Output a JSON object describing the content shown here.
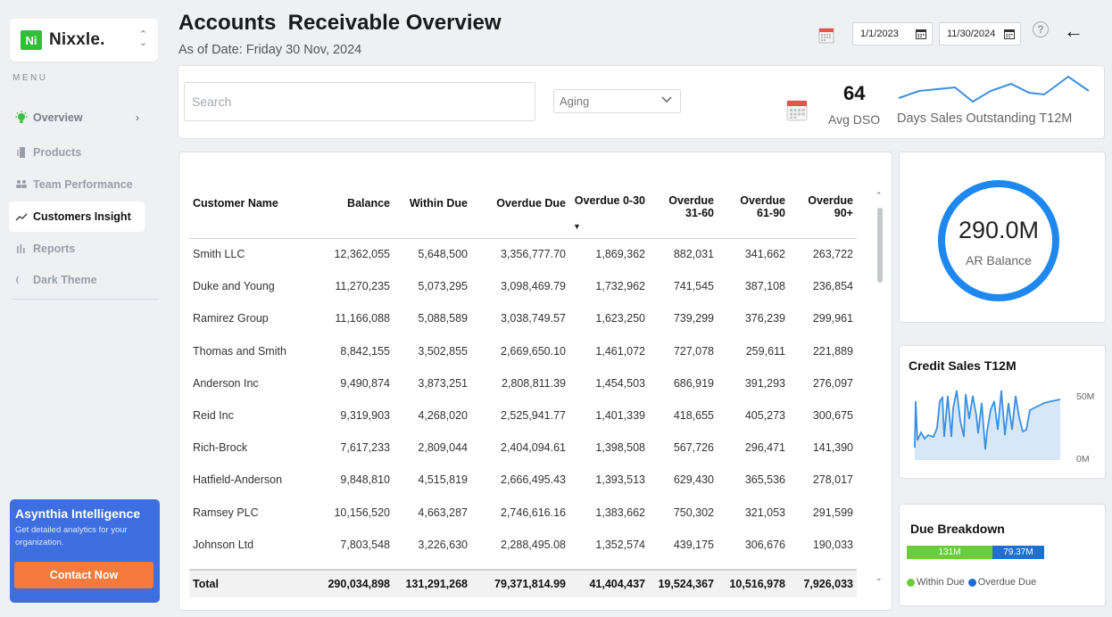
{
  "brand": {
    "logo_text": "Ni",
    "name": "Nixxle."
  },
  "sidebar": {
    "menu_label": "MENU",
    "items": [
      {
        "label": "Overview",
        "icon": "lightbulb-icon"
      },
      {
        "label": "Products",
        "icon": "products-icon"
      },
      {
        "label": "Team Performance",
        "icon": "team-icon"
      },
      {
        "label": "Customers Insight",
        "icon": "trend-icon"
      },
      {
        "label": "Reports",
        "icon": "bar-chart-icon"
      },
      {
        "label": "Dark Theme",
        "icon": "moon-icon"
      }
    ],
    "promo": {
      "title": "Asynthia Intelligence",
      "text": "Get detailed analytics for your organization.",
      "button": "Contact Now"
    }
  },
  "header": {
    "title": "Accounts  Receivable Overview",
    "subtitle": "As of Date: Friday 30 Nov, 2024",
    "date_from": "1/1/2023",
    "date_to": "11/30/2024"
  },
  "filters": {
    "search_placeholder": "Search",
    "aging_select": "Aging"
  },
  "dso": {
    "value": "64",
    "label": "Avg DSO",
    "caption": "Days Sales Outstanding T12M"
  },
  "table": {
    "columns": [
      "Customer Name",
      "Balance",
      "Within Due",
      "Overdue Due",
      "Overdue 0-30",
      "Overdue 31-60",
      "Overdue 61-90",
      "Overdue 90+"
    ],
    "rows": [
      [
        "Smith LLC",
        "12,362,055",
        "5,648,500",
        "3,356,777.70",
        "1,869,362",
        "882,031",
        "341,662",
        "263,722"
      ],
      [
        "Duke and Young",
        "11,270,235",
        "5,073,295",
        "3,098,469.79",
        "1,732,962",
        "741,545",
        "387,108",
        "236,854"
      ],
      [
        "Ramirez Group",
        "11,166,088",
        "5,088,589",
        "3,038,749.57",
        "1,623,250",
        "739,299",
        "376,239",
        "299,961"
      ],
      [
        "Thomas and Smith",
        "8,842,155",
        "3,502,855",
        "2,669,650.10",
        "1,461,072",
        "727,078",
        "259,611",
        "221,889"
      ],
      [
        "Anderson Inc",
        "9,490,874",
        "3,873,251",
        "2,808,811.39",
        "1,454,503",
        "686,919",
        "391,293",
        "276,097"
      ],
      [
        "Reid Inc",
        "9,319,903",
        "4,268,020",
        "2,525,941.77",
        "1,401,339",
        "418,655",
        "405,273",
        "300,675"
      ],
      [
        "Rich-Brock",
        "7,617,233",
        "2,809,044",
        "2,404,094.61",
        "1,398,508",
        "567,726",
        "296,471",
        "141,390"
      ],
      [
        "Hatfield-Anderson",
        "9,848,810",
        "4,515,819",
        "2,666,495.43",
        "1,393,513",
        "629,430",
        "365,536",
        "278,017"
      ],
      [
        "Ramsey PLC",
        "10,156,520",
        "4,663,287",
        "2,746,616.16",
        "1,383,662",
        "750,302",
        "321,053",
        "291,599"
      ],
      [
        "Johnson Ltd",
        "7,803,548",
        "3,226,630",
        "2,288,495.08",
        "1,352,574",
        "439,175",
        "306,676",
        "190,033"
      ]
    ],
    "total": [
      "Total",
      "290,034,898",
      "131,291,268",
      "79,371,814.99",
      "41,404,437",
      "19,524,367",
      "10,516,978",
      "7,926,033"
    ]
  },
  "ar_balance": {
    "value": "290.0M",
    "label": "AR Balance",
    "ring_color": "#1e88f0"
  },
  "credit_sales": {
    "title": "Credit Sales T12M",
    "y_max_label": "50M",
    "y_min_label": "0M",
    "line_color": "#3d8fe0",
    "fill_color": "#d6e8f8"
  },
  "due_breakdown": {
    "title": "Due Breakdown",
    "within_label": "131M",
    "overdue_label": "79.37M",
    "within_value": 131.29,
    "overdue_value": 79.37,
    "within_color": "#6ccd3c",
    "overdue_color": "#1f6fd1",
    "legend_within": "Within Due",
    "legend_overdue": "Overdue Due"
  },
  "colors": {
    "accent_green": "#2fbf3a",
    "promo_blue": "#3d6fe0",
    "promo_button": "#f47b3d"
  }
}
